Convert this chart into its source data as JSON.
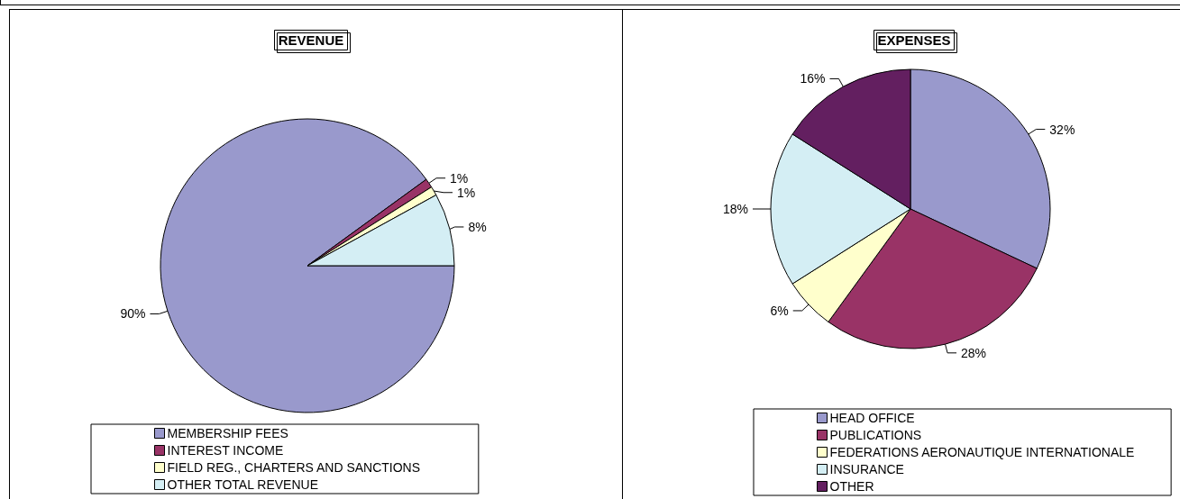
{
  "chart_data": [
    {
      "type": "pie",
      "title": "REVENUE",
      "categories": [
        "MEMBERSHIP FEES",
        "INTEREST INCOME",
        "FIELD REG., CHARTERS AND SANCTIONS",
        "OTHER TOTAL REVENUE"
      ],
      "values": [
        90,
        1,
        1,
        8
      ],
      "value_labels": [
        "90%",
        "1%",
        "1%",
        "8%"
      ],
      "colors": [
        "#9999cc",
        "#993366",
        "#ffffcc",
        "#d4eef4"
      ],
      "legend": "bottom"
    },
    {
      "type": "pie",
      "title": "EXPENSES",
      "categories": [
        "HEAD OFFICE",
        "PUBLICATIONS",
        "FEDERATIONS AERONAUTIQUE INTERNATIONALE",
        "INSURANCE",
        "OTHER"
      ],
      "values": [
        32,
        28,
        6,
        18,
        16
      ],
      "value_labels": [
        "32%",
        "28%",
        "6%",
        "18%",
        "16%"
      ],
      "colors": [
        "#9999cc",
        "#993366",
        "#ffffcc",
        "#d4eef4",
        "#631f60"
      ],
      "legend": "bottom"
    }
  ]
}
